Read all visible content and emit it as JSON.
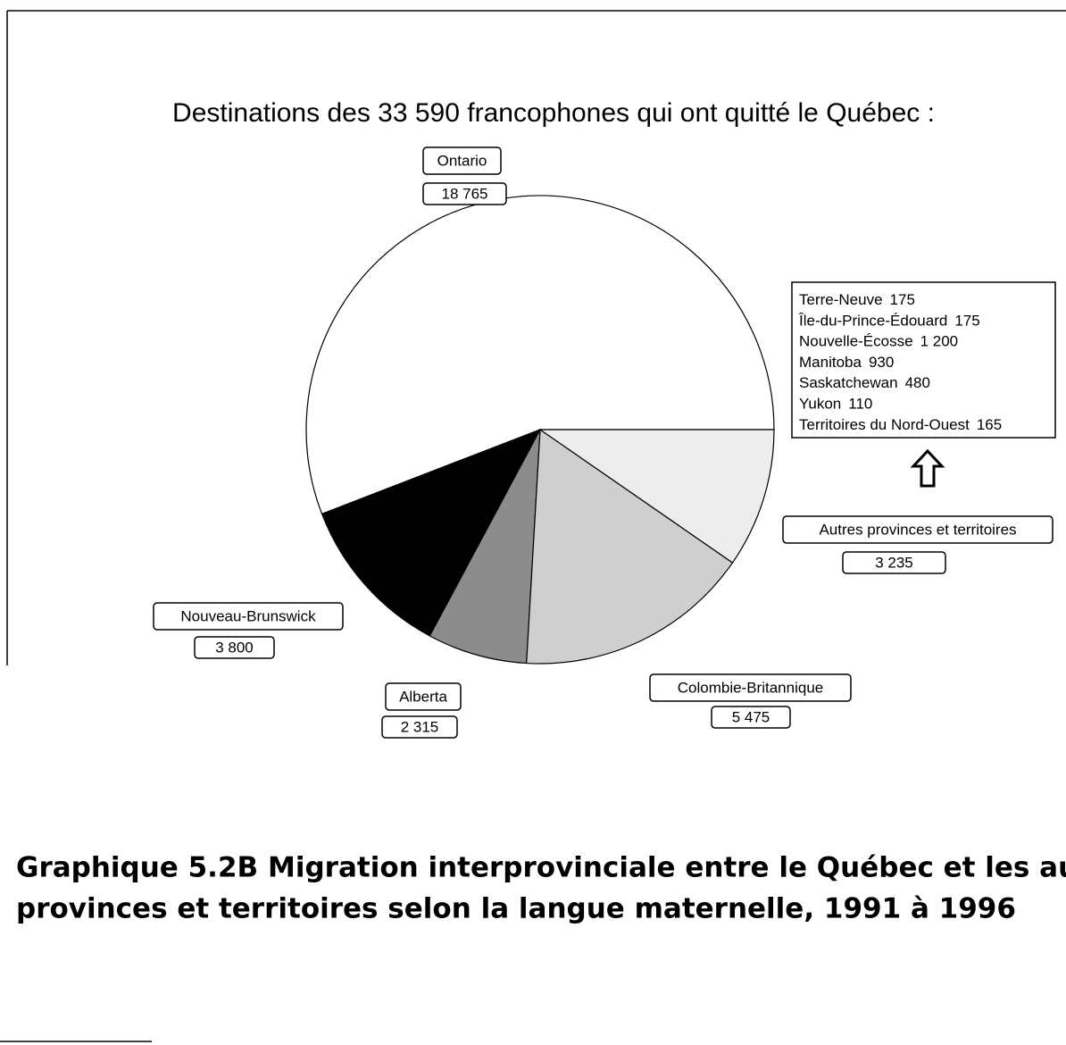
{
  "chart_data": {
    "type": "pie",
    "title": "Destinations des 33 590 francophones qui ont quitté le Québec :",
    "categories": [
      "Ontario",
      "Nouveau-Brunswick",
      "Alberta",
      "Colombie-Britannique",
      "Autres provinces et territoires"
    ],
    "values": [
      18765,
      3800,
      2315,
      5475,
      3235
    ],
    "value_labels": [
      "18 765",
      "3 800",
      "2 315",
      "5 475",
      "3 235"
    ],
    "colors": [
      "#ffffff",
      "#000000",
      "#8c8c8c",
      "#cfcfcf",
      "#ededed"
    ],
    "annotation_box": {
      "items": [
        {
          "name": "Terre-Neuve",
          "value": 175
        },
        {
          "name": "Île-du-Prince-Édouard",
          "value": 175
        },
        {
          "name": "Nouvelle-Écosse",
          "value": 1200,
          "value_label": "1 200"
        },
        {
          "name": "Manitoba",
          "value": 930
        },
        {
          "name": "Saskatchewan",
          "value": 480
        },
        {
          "name": "Yukon",
          "value": 110
        },
        {
          "name": "Territoires du Nord-Ouest",
          "value": 165
        }
      ]
    },
    "caption": {
      "number": "Graphique 5.2B",
      "line1": "Migration interprovinciale entre le Québec et les autres",
      "line2": "provinces et territoires selon la langue maternelle, 1991 à 1996"
    }
  }
}
